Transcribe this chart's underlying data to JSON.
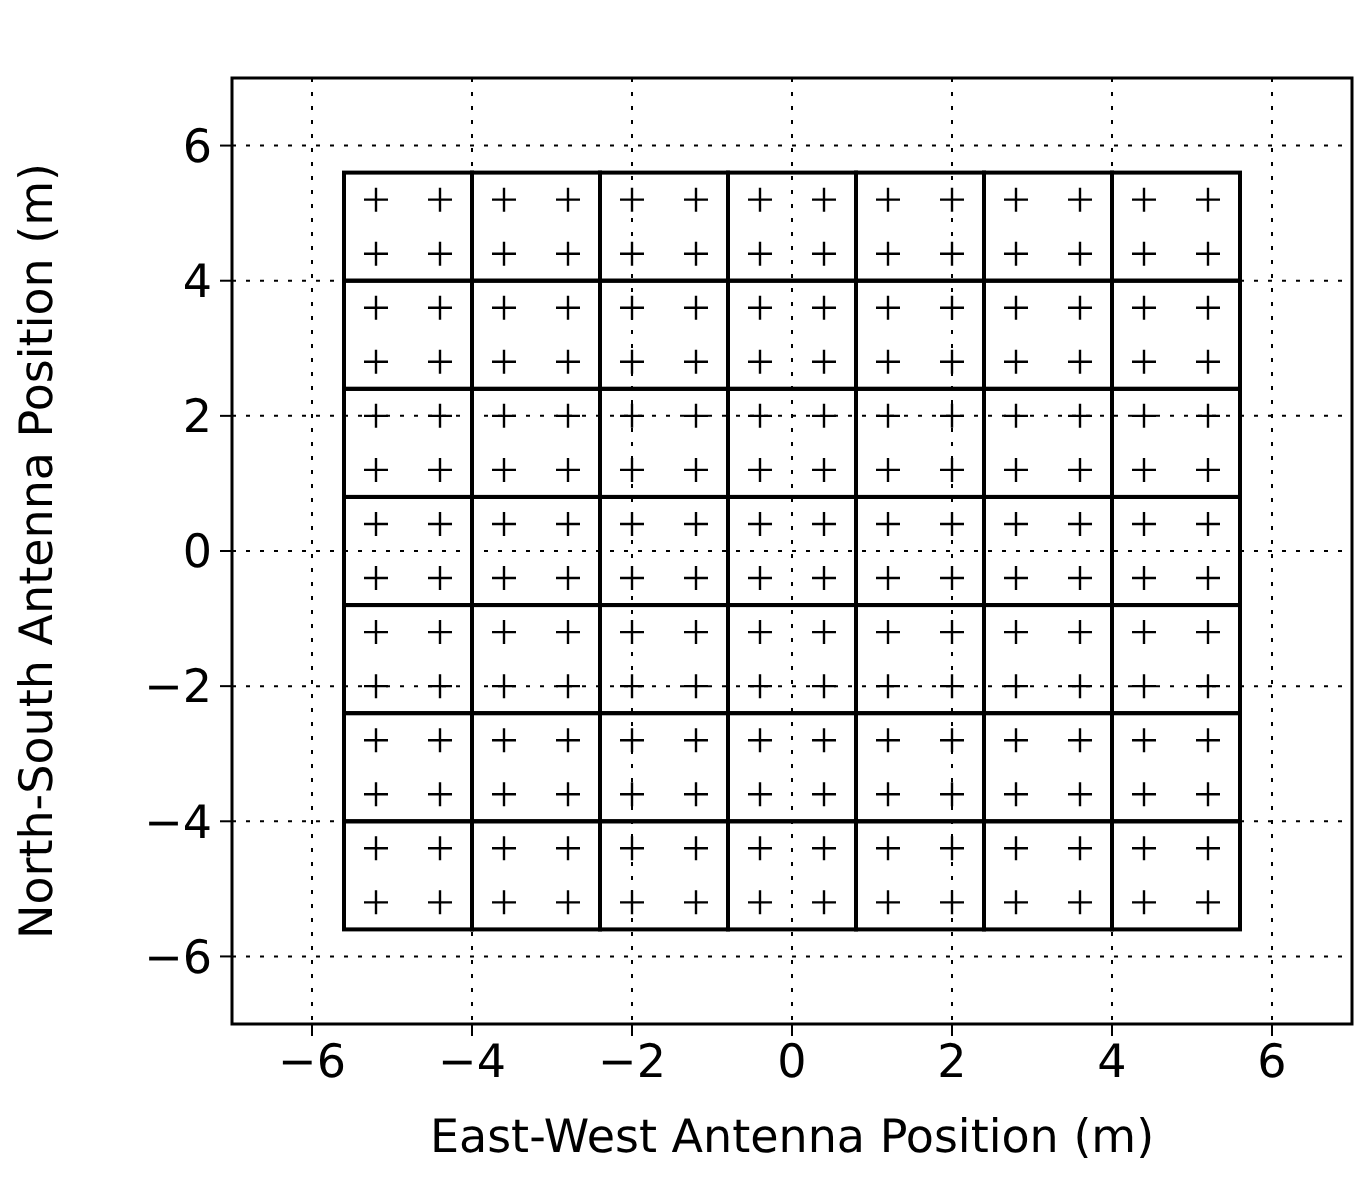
{
  "chart_data": {
    "type": "scatter",
    "xlabel": "East-West Antenna Position (m)",
    "ylabel": "North-South Antenna Position (m)",
    "xlim": [
      -7,
      7
    ],
    "ylim": [
      -7,
      7
    ],
    "xticks": [
      {
        "value": -6,
        "label": "−6"
      },
      {
        "value": -4,
        "label": "−4"
      },
      {
        "value": -2,
        "label": "−2"
      },
      0,
      2,
      4,
      6
    ],
    "yticks": [
      {
        "value": -6,
        "label": "−6"
      },
      {
        "value": -4,
        "label": "−4"
      },
      {
        "value": -2,
        "label": "−2"
      },
      0,
      2,
      4,
      6
    ],
    "grid": true,
    "marker": "cross",
    "legend": false,
    "series": [
      {
        "color": "#000000",
        "x": [
          -5.2,
          -4.4,
          -5.2,
          -4.4,
          -3.6,
          -2.8,
          -3.6,
          -2.8,
          -2,
          -1.2,
          -2,
          -1.2,
          -0.4,
          0.4,
          -0.4,
          0.4,
          1.2,
          2,
          1.2,
          2,
          2.8,
          3.6,
          2.8,
          3.6,
          4.4,
          5.2,
          4.4,
          5.2,
          -5.2,
          -4.4,
          -5.2,
          -4.4,
          -3.6,
          -2.8,
          -3.6,
          -2.8,
          -2,
          -1.2,
          -2,
          -1.2,
          -0.4,
          0.4,
          -0.4,
          0.4,
          1.2,
          2,
          1.2,
          2,
          2.8,
          3.6,
          2.8,
          3.6,
          4.4,
          5.2,
          4.4,
          5.2,
          -5.2,
          -4.4,
          -5.2,
          -4.4,
          -3.6,
          -2.8,
          -3.6,
          -2.8,
          -2,
          -1.2,
          -2,
          -1.2,
          -0.4,
          0.4,
          -0.4,
          0.4,
          1.2,
          2,
          1.2,
          2,
          2.8,
          3.6,
          2.8,
          3.6,
          4.4,
          5.2,
          4.4,
          5.2,
          -5.2,
          -4.4,
          -5.2,
          -4.4,
          -3.6,
          -2.8,
          -3.6,
          -2.8,
          -2,
          -1.2,
          -2,
          -1.2,
          -0.4,
          0.4,
          -0.4,
          0.4,
          1.2,
          2,
          1.2,
          2,
          2.8,
          3.6,
          2.8,
          3.6,
          4.4,
          5.2,
          4.4,
          5.2,
          -5.2,
          -4.4,
          -5.2,
          -4.4,
          -3.6,
          -2.8,
          -3.6,
          -2.8,
          -2,
          -1.2,
          -2,
          -1.2,
          -0.4,
          0.4,
          -0.4,
          0.4,
          1.2,
          2,
          1.2,
          2,
          2.8,
          3.6,
          2.8,
          3.6,
          4.4,
          5.2,
          4.4,
          5.2,
          -5.2,
          -4.4,
          -5.2,
          -4.4,
          -3.6,
          -2.8,
          -3.6,
          -2.8,
          -2,
          -1.2,
          -2,
          -1.2,
          -0.4,
          0.4,
          -0.4,
          0.4,
          1.2,
          2,
          1.2,
          2,
          2.8,
          3.6,
          2.8,
          3.6,
          4.4,
          5.2,
          4.4,
          5.2,
          -5.2,
          -4.4,
          -5.2,
          -4.4,
          -3.6,
          -2.8,
          -3.6,
          -2.8,
          -2,
          -1.2,
          -2,
          -1.2,
          -0.4,
          0.4,
          -0.4,
          0.4,
          1.2,
          2,
          1.2,
          2,
          2.8,
          3.6,
          2.8,
          3.6,
          4.4,
          5.2,
          4.4,
          5.2
        ],
        "values": [
          5.2,
          5.2,
          4.4,
          4.4,
          5.2,
          5.2,
          4.4,
          4.4,
          5.2,
          5.2,
          4.4,
          4.4,
          5.2,
          5.2,
          4.4,
          4.4,
          5.2,
          5.2,
          4.4,
          4.4,
          5.2,
          5.2,
          4.4,
          4.4,
          5.2,
          5.2,
          4.4,
          4.4,
          3.6,
          3.6,
          2.8,
          2.8,
          3.6,
          3.6,
          2.8,
          2.8,
          3.6,
          3.6,
          2.8,
          2.8,
          3.6,
          3.6,
          2.8,
          2.8,
          3.6,
          3.6,
          2.8,
          2.8,
          3.6,
          3.6,
          2.8,
          2.8,
          3.6,
          3.6,
          2.8,
          2.8,
          2,
          2,
          1.2,
          1.2,
          2,
          2,
          1.2,
          1.2,
          2,
          2,
          1.2,
          1.2,
          2,
          2,
          1.2,
          1.2,
          2,
          2,
          1.2,
          1.2,
          2,
          2,
          1.2,
          1.2,
          2,
          2,
          1.2,
          1.2,
          0.4,
          0.4,
          -0.4,
          -0.4,
          0.4,
          0.4,
          -0.4,
          -0.4,
          0.4,
          0.4,
          -0.4,
          -0.4,
          0.4,
          0.4,
          -0.4,
          -0.4,
          0.4,
          0.4,
          -0.4,
          -0.4,
          0.4,
          0.4,
          -0.4,
          -0.4,
          0.4,
          0.4,
          -0.4,
          -0.4,
          -1.2,
          -1.2,
          -2,
          -2,
          -1.2,
          -1.2,
          -2,
          -2,
          -1.2,
          -1.2,
          -2,
          -2,
          -1.2,
          -1.2,
          -2,
          -2,
          -1.2,
          -1.2,
          -2,
          -2,
          -1.2,
          -1.2,
          -2,
          -2,
          -1.2,
          -1.2,
          -2,
          -2,
          -2.8,
          -2.8,
          -3.6,
          -3.6,
          -2.8,
          -2.8,
          -3.6,
          -3.6,
          -2.8,
          -2.8,
          -3.6,
          -3.6,
          -2.8,
          -2.8,
          -3.6,
          -3.6,
          -2.8,
          -2.8,
          -3.6,
          -3.6,
          -2.8,
          -2.8,
          -3.6,
          -3.6,
          -2.8,
          -2.8,
          -3.6,
          -3.6,
          -4.4,
          -4.4,
          -5.2,
          -5.2,
          -4.4,
          -4.4,
          -5.2,
          -5.2,
          -4.4,
          -4.4,
          -5.2,
          -5.2,
          -4.4,
          -4.4,
          -5.2,
          -5.2,
          -4.4,
          -4.4,
          -5.2,
          -5.2,
          -4.4,
          -4.4,
          -5.2,
          -5.2,
          -4.4,
          -4.4,
          -5.2,
          -5.2
        ]
      }
    ]
  }
}
